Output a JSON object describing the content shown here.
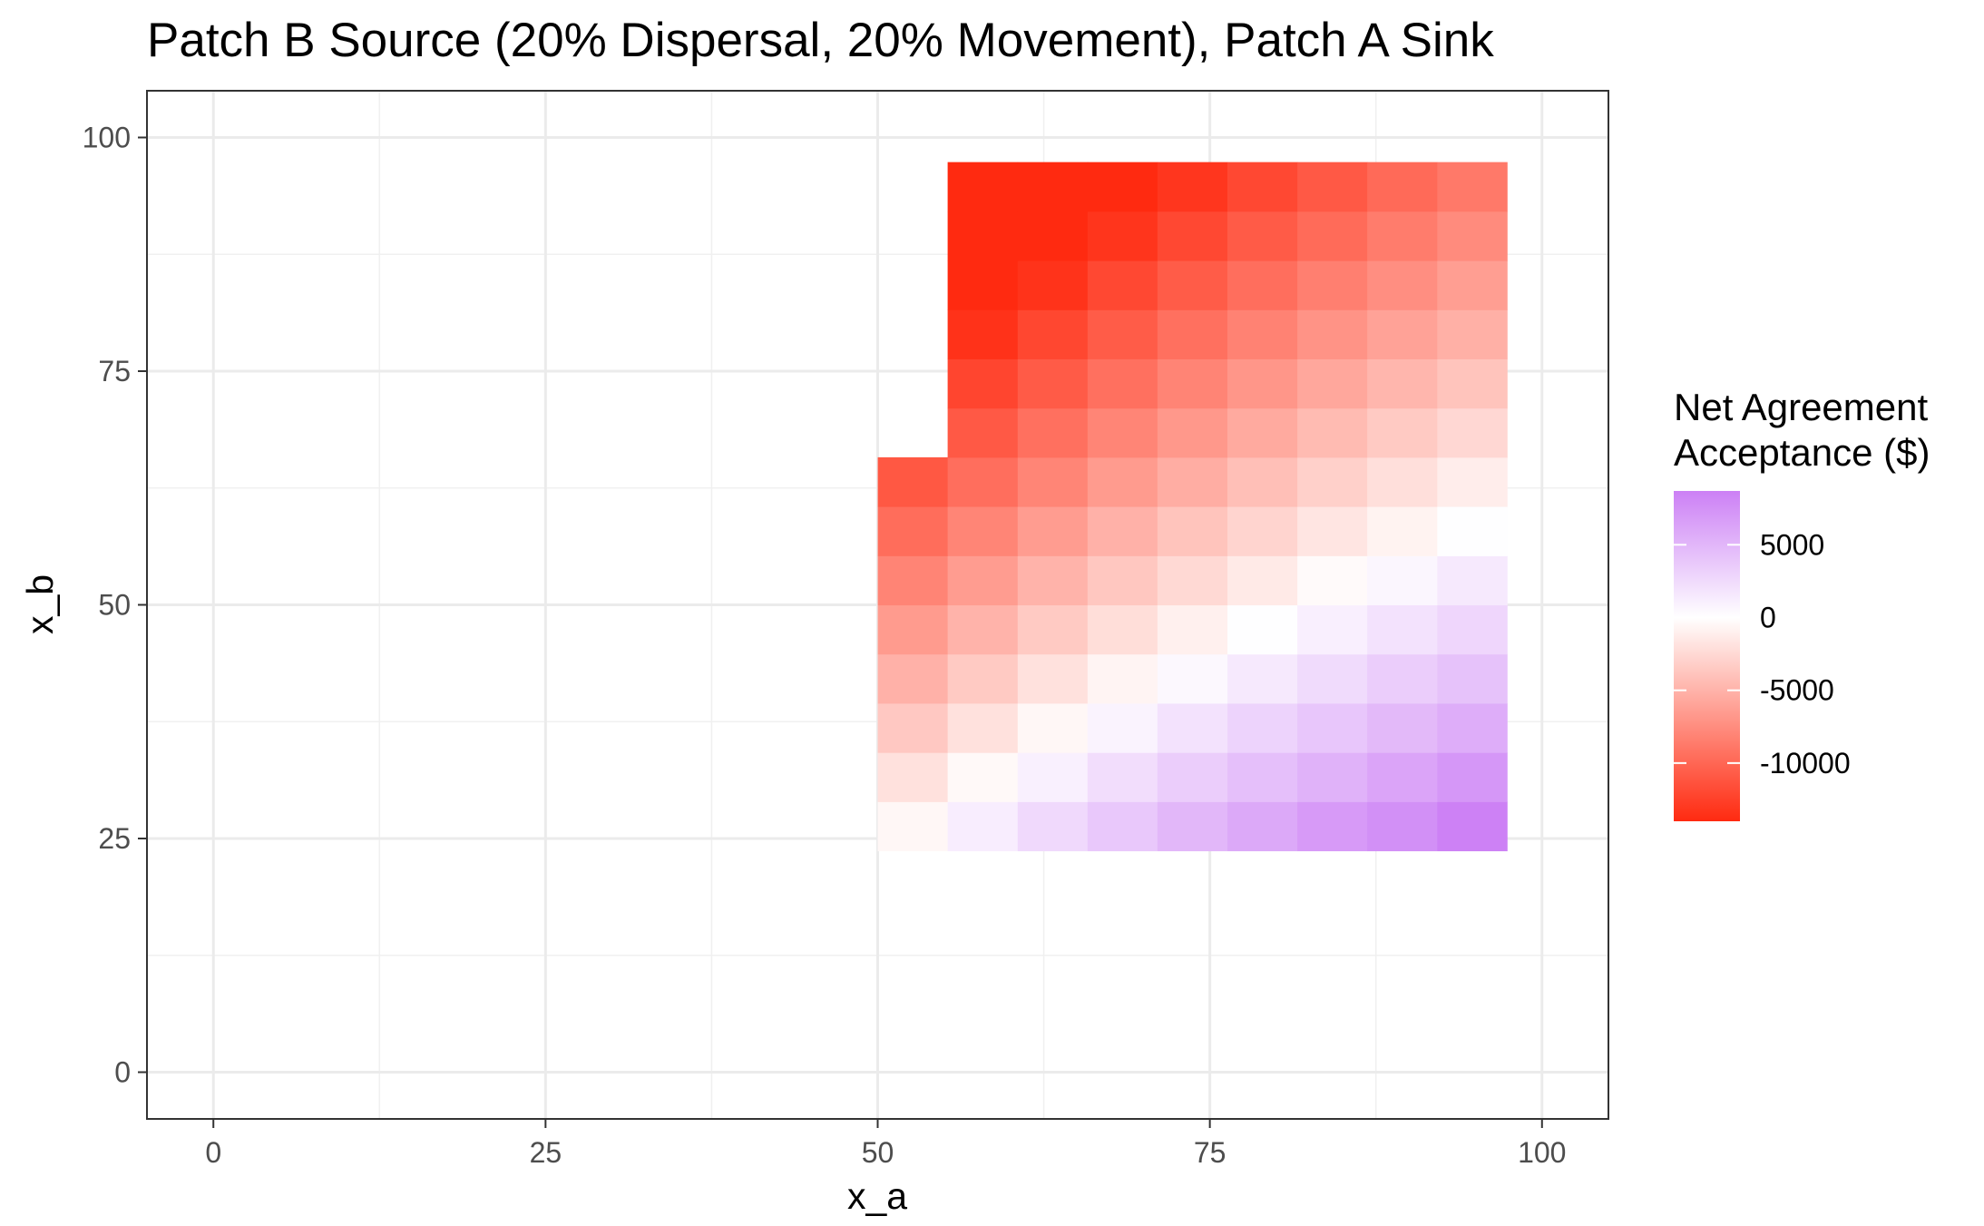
{
  "chart_data": {
    "type": "heatmap",
    "title": "Patch B Source (20% Dispersal, 20% Movement), Patch A Sink",
    "xlabel": "x_a",
    "ylabel": "x_b",
    "xlim": [
      -5,
      105
    ],
    "ylim": [
      -5,
      105
    ],
    "x_ticks": [
      "0",
      "25",
      "50",
      "75",
      "100"
    ],
    "y_ticks": [
      "0",
      "25",
      "50",
      "75",
      "100"
    ],
    "grid": true,
    "cell_width": 5.25,
    "cell_height": 5.25,
    "x": [
      52.63,
      57.89,
      63.16,
      68.42,
      73.68,
      78.95,
      84.21,
      89.47,
      94.74
    ],
    "y": [
      26.32,
      31.58,
      36.84,
      42.11,
      47.37,
      52.63,
      57.89,
      63.16,
      68.42,
      73.68,
      78.95,
      84.21,
      89.47,
      94.74
    ],
    "z": [
      [
        -500,
        1200,
        2600,
        3800,
        4900,
        5900,
        6900,
        7600,
        8600
      ],
      [
        -2000,
        -400,
        1000,
        2300,
        3400,
        4400,
        5300,
        6200,
        7100
      ],
      [
        -3600,
        -2000,
        -500,
        800,
        2000,
        3000,
        3900,
        4800,
        5600
      ],
      [
        -5100,
        -3500,
        -2000,
        -700,
        500,
        1500,
        2500,
        3400,
        4200
      ],
      [
        -6600,
        -5000,
        -3500,
        -2200,
        -1000,
        100,
        1100,
        2000,
        2800
      ],
      [
        -8100,
        -6500,
        -5000,
        -3700,
        -2500,
        -1400,
        -300,
        600,
        1500
      ],
      [
        -9600,
        -8000,
        -6500,
        -5100,
        -3900,
        -2800,
        -1700,
        -800,
        100
      ],
      [
        -11000,
        -9500,
        -8000,
        -6600,
        -5400,
        -4200,
        -3100,
        -2100,
        -1200
      ],
      [
        null,
        -10900,
        -9400,
        -8000,
        -6800,
        -5600,
        -4500,
        -3500,
        -2600
      ],
      [
        null,
        -12200,
        -10800,
        -9400,
        -8100,
        -6900,
        -5800,
        -4800,
        -3900
      ],
      [
        null,
        -13500,
        -12100,
        -10700,
        -9400,
        -8200,
        -7100,
        -6100,
        -5200
      ],
      [
        null,
        -14800,
        -13400,
        -12000,
        -10700,
        -9500,
        -8400,
        -7400,
        -6400
      ],
      [
        null,
        -16100,
        -14700,
        -13300,
        -12000,
        -10800,
        -9700,
        -8600,
        -7600
      ],
      [
        null,
        -17500,
        -16000,
        -14500,
        -13200,
        -12000,
        -10900,
        -9800,
        -8800
      ]
    ],
    "legend": {
      "title": "Net Agreement Acceptance ($)",
      "title_lines": [
        "Net Agreement",
        "Acceptance ($)"
      ],
      "placement": "right",
      "breaks": [
        5000,
        0,
        -5000,
        -10000
      ],
      "break_labels": [
        "5000",
        "0",
        "-5000",
        "-10000"
      ],
      "colors": {
        "low": "#ff2a10",
        "mid": "#ffffff",
        "high": "#cc80f5"
      },
      "limits": [
        -14000,
        8700
      ]
    }
  }
}
